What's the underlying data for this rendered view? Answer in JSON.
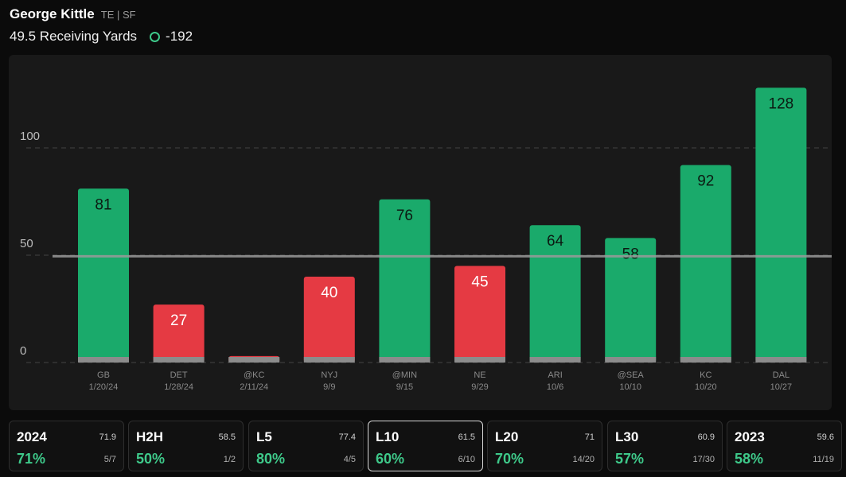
{
  "player": {
    "name": "George Kittle",
    "meta": "TE | SF"
  },
  "prop": {
    "line": "49.5 Receiving Yards",
    "odds": "-192",
    "icon": "circle-outline-icon"
  },
  "colors": {
    "over": "#1aaa6b",
    "under": "#e53a43",
    "accent": "#3ec98a"
  },
  "chart_data": {
    "type": "bar",
    "categories": [
      "GB",
      "DET",
      "@KC",
      "NYJ",
      "@MIN",
      "NE",
      "ARI",
      "@SEA",
      "KC",
      "DAL"
    ],
    "dates": [
      "1/20/24",
      "1/28/24",
      "2/11/24",
      "9/9",
      "9/15",
      "9/29",
      "10/6",
      "10/10",
      "10/20",
      "10/27"
    ],
    "values": [
      81,
      27,
      3,
      40,
      76,
      45,
      64,
      58,
      92,
      128
    ],
    "data_labels": [
      "81",
      "27",
      "",
      "40",
      "76",
      "45",
      "64",
      "58",
      "92",
      "128"
    ],
    "ylim": [
      0,
      138
    ],
    "yticks": [
      "0",
      "50",
      "100"
    ],
    "line": 49.5,
    "grid": true
  },
  "tabs": [
    {
      "label": "2024",
      "avg": "71.9",
      "pct": "71%",
      "frac": "5/7"
    },
    {
      "label": "H2H",
      "avg": "58.5",
      "pct": "50%",
      "frac": "1/2"
    },
    {
      "label": "L5",
      "avg": "77.4",
      "pct": "80%",
      "frac": "4/5"
    },
    {
      "label": "L10",
      "avg": "61.5",
      "pct": "60%",
      "frac": "6/10",
      "active": true
    },
    {
      "label": "L20",
      "avg": "71",
      "pct": "70%",
      "frac": "14/20"
    },
    {
      "label": "L30",
      "avg": "60.9",
      "pct": "57%",
      "frac": "17/30"
    },
    {
      "label": "2023",
      "avg": "59.6",
      "pct": "58%",
      "frac": "11/19"
    }
  ]
}
